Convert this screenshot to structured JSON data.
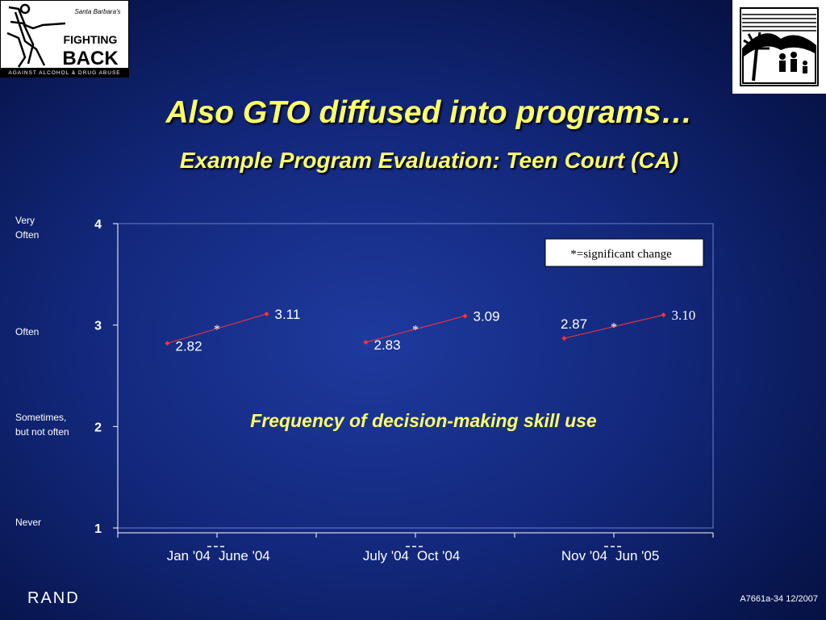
{
  "slide": {
    "title": "Also GTO diffused into programs…",
    "subtitle": "Example Program Evaluation: Teen Court (CA)",
    "footer_brand": "RAND",
    "footer_code": "A7661a-34  12/2007"
  },
  "logos": {
    "left": {
      "line1": "Santa Barbara's",
      "line2": "FIGHTING",
      "line3": "BACK",
      "line4": "AGAINST ALCOHOL & DRUG ABUSE"
    }
  },
  "y_category_labels": [
    {
      "lines": [
        "Very",
        "Often"
      ]
    },
    {
      "lines": [
        "Often"
      ]
    },
    {
      "lines": [
        "Sometimes,",
        "but not often"
      ]
    },
    {
      "lines": [
        "Never"
      ]
    }
  ],
  "chart_data": {
    "type": "line",
    "ylim": [
      1,
      4
    ],
    "yticks": [
      1,
      2,
      3,
      4
    ],
    "grid": false,
    "annotation": "Frequency of decision-making skill use",
    "legend_box": "*=significant change",
    "groups": [
      {
        "start_label": "Jan '04",
        "end_label": "June '04",
        "start_value": 2.82,
        "end_value": 3.11,
        "start_text": "2.82",
        "end_text": "3.11",
        "marker": "*"
      },
      {
        "start_label": "July '04",
        "end_label": "Oct '04",
        "start_value": 2.83,
        "end_value": 3.09,
        "start_text": "2.83",
        "end_text": "3.09",
        "marker": "*"
      },
      {
        "start_label": "Nov '04",
        "end_label": "Jun '05",
        "start_value": 2.87,
        "end_value": 3.1,
        "start_text": "2.87",
        "end_text": "3.10",
        "marker": "*"
      }
    ],
    "colors": {
      "line": "#ff3333",
      "point": "#ff3333",
      "axis": "#ffffff",
      "annotation": "#ffff66"
    }
  }
}
